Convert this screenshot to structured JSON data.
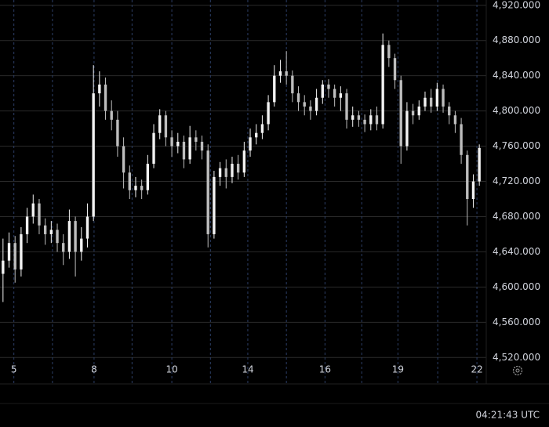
{
  "chart_data": {
    "type": "candlestick",
    "up_color": "#f2f2f2",
    "down_color": "#bdbdbd",
    "grid": true,
    "xlim": [
      -0.5,
      79.5
    ],
    "ylim": [
      4490,
      4926
    ],
    "yticks": [
      {
        "value": 4520,
        "label": "4,520.000"
      },
      {
        "value": 4560,
        "label": "4,560.000"
      },
      {
        "value": 4600,
        "label": "4,600.000"
      },
      {
        "value": 4640,
        "label": "4,640.000"
      },
      {
        "value": 4680,
        "label": "4,680.000"
      },
      {
        "value": 4720,
        "label": "4,720.000"
      },
      {
        "value": 4760,
        "label": "4,760.000"
      },
      {
        "value": 4800,
        "label": "4,800.000"
      },
      {
        "value": 4840,
        "label": "4,840.000"
      },
      {
        "value": 4880,
        "label": "4,880.000"
      },
      {
        "value": 4920,
        "label": "4,920.000"
      }
    ],
    "xticks": [
      {
        "value": 1.8,
        "label": "5"
      },
      {
        "value": 15.1,
        "label": "8"
      },
      {
        "value": 28,
        "label": "10"
      },
      {
        "value": 40.6,
        "label": "14"
      },
      {
        "value": 53.4,
        "label": "16"
      },
      {
        "value": 65.5,
        "label": "19"
      },
      {
        "value": 78.6,
        "label": "22"
      }
    ],
    "minor_xticks": [
      8.2,
      21.4,
      34.4,
      47,
      59.5,
      72.1
    ],
    "open": [
      4615,
      4630,
      4650,
      4620,
      4660,
      4680,
      4695,
      4670,
      4660,
      4665,
      4650,
      4640,
      4675,
      4640,
      4655,
      4680,
      4820,
      4830,
      4800,
      4790,
      4760,
      4730,
      4710,
      4715,
      4710,
      4740,
      4775,
      4795,
      4770,
      4760,
      4765,
      4745,
      4770,
      4765,
      4755,
      4660,
      4725,
      4735,
      4725,
      4740,
      4730,
      4755,
      4770,
      4775,
      4785,
      4810,
      4840,
      4845,
      4840,
      4820,
      4810,
      4805,
      4800,
      4815,
      4830,
      4825,
      4815,
      4820,
      4790,
      4795,
      4790,
      4785,
      4795,
      4785,
      4875,
      4860,
      4835,
      4760,
      4800,
      4795,
      4805,
      4815,
      4805,
      4825,
      4805,
      4795,
      4785,
      4750,
      4700,
      4720
    ],
    "high": [
      4655,
      4662,
      4658,
      4668,
      4690,
      4705,
      4700,
      4678,
      4675,
      4672,
      4660,
      4688,
      4680,
      4668,
      4695,
      4852,
      4845,
      4838,
      4812,
      4800,
      4770,
      4738,
      4725,
      4722,
      4750,
      4785,
      4802,
      4800,
      4778,
      4775,
      4772,
      4783,
      4778,
      4772,
      4762,
      4732,
      4742,
      4745,
      4748,
      4750,
      4765,
      4780,
      4785,
      4795,
      4818,
      4852,
      4858,
      4868,
      4846,
      4828,
      4818,
      4812,
      4825,
      4835,
      4836,
      4830,
      4828,
      4825,
      4805,
      4800,
      4796,
      4802,
      4805,
      4888,
      4880,
      4865,
      4840,
      4810,
      4808,
      4812,
      4822,
      4825,
      4832,
      4830,
      4810,
      4800,
      4792,
      4755,
      4728,
      4762
    ],
    "low": [
      4583,
      4622,
      4605,
      4612,
      4650,
      4672,
      4660,
      4648,
      4650,
      4640,
      4625,
      4632,
      4612,
      4630,
      4645,
      4675,
      4805,
      4790,
      4778,
      4748,
      4712,
      4700,
      4702,
      4700,
      4705,
      4735,
      4768,
      4760,
      4748,
      4752,
      4735,
      4740,
      4755,
      4745,
      4645,
      4655,
      4715,
      4712,
      4718,
      4722,
      4725,
      4748,
      4762,
      4768,
      4778,
      4805,
      4832,
      4830,
      4810,
      4800,
      4795,
      4790,
      4795,
      4808,
      4815,
      4805,
      4800,
      4780,
      4782,
      4782,
      4776,
      4778,
      4778,
      4780,
      4850,
      4825,
      4740,
      4755,
      4785,
      4790,
      4800,
      4798,
      4800,
      4798,
      4785,
      4775,
      4740,
      4670,
      4690,
      4715
    ],
    "close": [
      4630,
      4650,
      4620,
      4660,
      4680,
      4695,
      4670,
      4660,
      4665,
      4650,
      4640,
      4675,
      4640,
      4655,
      4680,
      4820,
      4830,
      4800,
      4790,
      4760,
      4730,
      4710,
      4715,
      4710,
      4740,
      4775,
      4795,
      4770,
      4760,
      4765,
      4745,
      4770,
      4765,
      4755,
      4660,
      4725,
      4735,
      4725,
      4740,
      4730,
      4755,
      4770,
      4775,
      4785,
      4810,
      4840,
      4845,
      4840,
      4820,
      4810,
      4805,
      4800,
      4815,
      4830,
      4825,
      4815,
      4820,
      4790,
      4795,
      4790,
      4785,
      4795,
      4785,
      4875,
      4860,
      4835,
      4760,
      4800,
      4795,
      4805,
      4815,
      4805,
      4825,
      4805,
      4795,
      4785,
      4750,
      4700,
      4720,
      4758
    ]
  },
  "status_time": "04:21:43 UTC"
}
